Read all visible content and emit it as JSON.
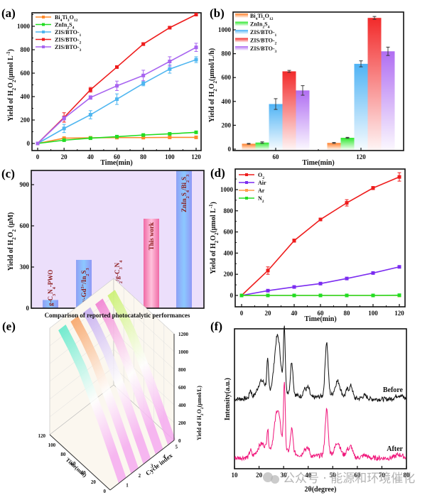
{
  "panel_labels": [
    "(a)",
    "(b)",
    "(c)",
    "(d)",
    "(e)",
    "(f)"
  ],
  "watermark": "公众号 · 能源和环境催化",
  "chart_data": [
    {
      "id": "a",
      "type": "line",
      "xlabel": "Time(min)",
      "ylabel": "Yield of H2O2(μmol L-1)",
      "x": [
        0,
        20,
        40,
        60,
        80,
        100,
        120
      ],
      "xticks": [
        "0",
        "20",
        "40",
        "60",
        "80",
        "100",
        "120"
      ],
      "yticks": [
        "0",
        "200",
        "400",
        "600",
        "800",
        "1000"
      ],
      "xlim": [
        0,
        120
      ],
      "ylim": [
        -50,
        1130
      ],
      "legend_position": "top-left",
      "series": [
        {
          "name": "Bi4Ti3O12",
          "color": "#ff8a2a",
          "values": [
            0,
            45,
            48,
            50,
            50,
            52,
            52
          ],
          "err": [
            0,
            3,
            3,
            3,
            3,
            3,
            3
          ]
        },
        {
          "name": "ZnIn2S4",
          "color": "#22dd22",
          "values": [
            0,
            28,
            45,
            58,
            72,
            82,
            95
          ],
          "err": [
            0,
            3,
            3,
            4,
            4,
            4,
            4
          ]
        },
        {
          "name": "ZIS/BTO-1",
          "color": "#4fb6f0",
          "values": [
            0,
            128,
            245,
            378,
            512,
            635,
            715
          ],
          "err": [
            0,
            35,
            35,
            45,
            20,
            35,
            25
          ]
        },
        {
          "name": "ZIS/BTO-2",
          "color": "#ee1c1c",
          "values": [
            0,
            222,
            458,
            652,
            848,
            988,
            1100
          ],
          "err": [
            0,
            40,
            20,
            5,
            12,
            10,
            12
          ]
        },
        {
          "name": "ZIS/BTO-3",
          "color": "#a865f0",
          "values": [
            0,
            215,
            392,
            492,
            580,
            700,
            820
          ],
          "err": [
            0,
            15,
            15,
            40,
            45,
            40,
            35
          ]
        }
      ]
    },
    {
      "id": "b",
      "type": "bar",
      "xlabel": "Time(min)",
      "ylabel": "Yield of H2O2(μmol/L/h)",
      "categories": [
        "60",
        "120"
      ],
      "yticks": [
        "0",
        "200",
        "400",
        "600",
        "800",
        "1000"
      ],
      "ylim": [
        0,
        1130
      ],
      "legend_position": "top-left",
      "series": [
        {
          "name": "Bi4Ti3O12",
          "color": "#ff7f2a",
          "values": [
            45,
            52
          ],
          "err": [
            3,
            4
          ]
        },
        {
          "name": "ZnIn2S4",
          "color": "#2ee82e",
          "values": [
            55,
            95
          ],
          "err": [
            6,
            4
          ]
        },
        {
          "name": "ZIS/BTO-1",
          "color": "#4fb3f5",
          "values": [
            378,
            715
          ],
          "err": [
            45,
            25
          ]
        },
        {
          "name": "ZIS/BTO-2",
          "color": "#f22a2a",
          "values": [
            652,
            1100
          ],
          "err": [
            8,
            12
          ]
        },
        {
          "name": "ZIS/BTO-3",
          "color": "#b06ef2",
          "values": [
            492,
            820
          ],
          "err": [
            40,
            35
          ]
        }
      ]
    },
    {
      "id": "c",
      "type": "bar",
      "title": "",
      "xlabel": "Comparison of reported photocatalytic performances",
      "ylabel": "Yield of H2O2 (μM)",
      "categories": [
        "g-C3N4-PWO",
        "Sv-Gd3+/In2S3",
        "Bi4O5Br2/g-C3N4",
        "This work",
        "ZnIn2S4/Bi2S3"
      ],
      "values": [
        60,
        352,
        122,
        652,
        1000
      ],
      "highlight": "This work",
      "yticks": [
        "0",
        "300",
        "600",
        "900"
      ],
      "ylim": [
        0,
        1000
      ]
    },
    {
      "id": "d",
      "type": "line",
      "xlabel": "Time(min)",
      "ylabel": "Yield of H2O2(μmol L-1)",
      "x": [
        0,
        20,
        40,
        60,
        80,
        100,
        120
      ],
      "xticks": [
        "0",
        "20",
        "40",
        "60",
        "80",
        "100",
        "120"
      ],
      "yticks": [
        "0",
        "200",
        "400",
        "600",
        "800",
        "1000"
      ],
      "xlim": [
        0,
        120
      ],
      "ylim": [
        -100,
        1200
      ],
      "legend_position": "top-left",
      "series": [
        {
          "name": "O2",
          "color": "#ee1c1c",
          "values": [
            0,
            235,
            518,
            718,
            875,
            1015,
            1120
          ],
          "err": [
            0,
            35,
            15,
            12,
            30,
            15,
            40
          ]
        },
        {
          "name": "Air",
          "color": "#7b2cf0",
          "values": [
            0,
            45,
            80,
            112,
            160,
            212,
            270
          ],
          "err": [
            0,
            5,
            5,
            8,
            8,
            10,
            8
          ]
        },
        {
          "name": "Ar",
          "color": "#ff9a4a",
          "values": [
            0,
            0,
            0,
            0,
            0,
            0,
            0
          ],
          "err": [
            0,
            0,
            0,
            0,
            0,
            0,
            0
          ]
        },
        {
          "name": "N2",
          "color": "#22dd22",
          "values": [
            0,
            0,
            0,
            0,
            0,
            0,
            2
          ],
          "err": [
            0,
            0,
            0,
            0,
            0,
            0,
            0
          ]
        }
      ]
    },
    {
      "id": "e",
      "type": "area",
      "subtype": "3d-waterfall",
      "xlabel": "Time(min)",
      "ylabel": "Cycle index",
      "zlabel": "Yield of H2O2(μmol/L)",
      "time_ticks": [
        "0",
        "20",
        "40",
        "60",
        "80",
        "100",
        "120"
      ],
      "cycle_ticks": [
        "1",
        "2",
        "3",
        "4",
        "5"
      ],
      "z_ticks": [
        "0",
        "200",
        "400",
        "600",
        "800",
        "1000",
        "1200"
      ],
      "zlim": [
        0,
        1200
      ],
      "time": [
        0,
        20,
        40,
        60,
        80,
        100,
        120
      ],
      "series": [
        {
          "name": "Cycle 1",
          "color": "#5de8c8",
          "values": [
            0,
            230,
            455,
            650,
            845,
            985,
            1100
          ]
        },
        {
          "name": "Cycle 2",
          "color": "#f7a060",
          "values": [
            0,
            225,
            450,
            645,
            840,
            980,
            1090
          ]
        },
        {
          "name": "Cycle 3",
          "color": "#c2a8ef",
          "values": [
            0,
            220,
            445,
            640,
            830,
            970,
            1080
          ]
        },
        {
          "name": "Cycle 4",
          "color": "#f07ad0",
          "values": [
            0,
            218,
            440,
            635,
            825,
            965,
            1070
          ]
        },
        {
          "name": "Cycle 5",
          "color": "#c8f06a",
          "values": [
            0,
            215,
            435,
            630,
            820,
            955,
            1060
          ]
        }
      ]
    },
    {
      "id": "f",
      "type": "line",
      "subtype": "xrd",
      "xlabel": "2θ(degree)",
      "ylabel": "Intensity(a.u.)",
      "xticks": [
        "10",
        "20",
        "30",
        "40",
        "50",
        "60",
        "70",
        "80"
      ],
      "xlim": [
        10,
        80
      ],
      "yticks_shown": false,
      "peaks_2theta": [
        16.5,
        21,
        23.5,
        27.5,
        30.3,
        33.3,
        38.5,
        40,
        47.5,
        52,
        56,
        57.5,
        63,
        77
      ],
      "series": [
        {
          "name": "Before",
          "color": "#111111",
          "label": "Before",
          "peak_heights": [
            0.12,
            0.22,
            0.45,
            0.85,
            1.0,
            0.5,
            0.12,
            0.15,
            0.82,
            0.22,
            0.12,
            0.18,
            0.05,
            0.06
          ]
        },
        {
          "name": "After",
          "color": "#f0157a",
          "label": "After",
          "peak_heights": [
            0.1,
            0.15,
            0.3,
            0.6,
            1.0,
            0.35,
            0.1,
            0.12,
            0.66,
            0.18,
            0.1,
            0.15,
            0.04,
            0.05
          ]
        }
      ]
    }
  ]
}
